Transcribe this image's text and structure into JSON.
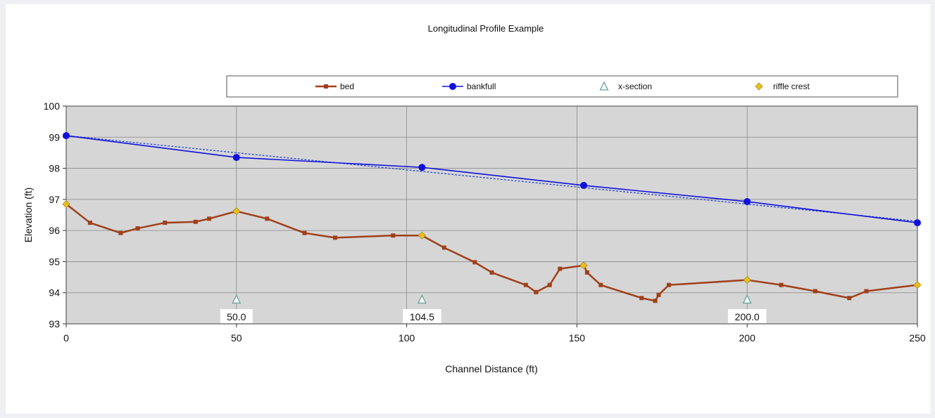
{
  "chart_data": {
    "type": "line",
    "title": "Longitudinal Profile Example",
    "xlabel": "Channel Distance (ft)",
    "ylabel": "Elevation (ft)",
    "xlim": [
      0,
      250
    ],
    "ylim": [
      93,
      100
    ],
    "xticks": [
      0,
      50,
      100,
      150,
      200,
      250
    ],
    "yticks": [
      93,
      94,
      95,
      96,
      97,
      98,
      99,
      100
    ],
    "grid": true,
    "legend_position": "top",
    "series": [
      {
        "name": "bed",
        "color": "#a0401a",
        "marker": "square",
        "points": [
          [
            0,
            96.85
          ],
          [
            7,
            96.25
          ],
          [
            16,
            95.92
          ],
          [
            21,
            96.07
          ],
          [
            29,
            96.25
          ],
          [
            38,
            96.28
          ],
          [
            42,
            96.38
          ],
          [
            50,
            96.62
          ],
          [
            59,
            96.38
          ],
          [
            70,
            95.92
          ],
          [
            79,
            95.77
          ],
          [
            96,
            95.84
          ],
          [
            104.5,
            95.84
          ],
          [
            111,
            95.45
          ],
          [
            120,
            94.98
          ],
          [
            125,
            94.65
          ],
          [
            135,
            94.25
          ],
          [
            138,
            94.02
          ],
          [
            142,
            94.25
          ],
          [
            145,
            94.77
          ],
          [
            152,
            94.88
          ],
          [
            153,
            94.65
          ],
          [
            157,
            94.25
          ],
          [
            169,
            93.83
          ],
          [
            173,
            93.74
          ],
          [
            174,
            93.93
          ],
          [
            177,
            94.25
          ],
          [
            200,
            94.41
          ],
          [
            210,
            94.25
          ],
          [
            220,
            94.05
          ],
          [
            230,
            93.83
          ],
          [
            235,
            94.05
          ],
          [
            250,
            94.25
          ]
        ]
      },
      {
        "name": "bankfull",
        "color": "#1010dd",
        "marker": "circle",
        "points": [
          [
            0,
            99.05
          ],
          [
            50,
            98.35
          ],
          [
            104.5,
            98.03
          ],
          [
            152,
            97.45
          ],
          [
            200,
            96.93
          ],
          [
            250,
            96.25
          ]
        ]
      },
      {
        "name": "x-section",
        "color": "#6aa3a0",
        "marker": "triangle",
        "points": [
          [
            50,
            93.78
          ],
          [
            104.5,
            93.78
          ],
          [
            200,
            93.78
          ]
        ]
      },
      {
        "name": "riffle crest",
        "color": "#e8c020",
        "marker": "diamond",
        "points": [
          [
            0,
            96.85
          ],
          [
            50,
            96.62
          ],
          [
            104.5,
            95.84
          ],
          [
            152,
            94.88
          ],
          [
            200,
            94.41
          ],
          [
            250,
            94.25
          ]
        ]
      }
    ],
    "trendline": {
      "series": "bankfull",
      "color": "#2a4ad8",
      "style": "dotted",
      "points": [
        [
          0,
          99.05
        ],
        [
          250,
          96.3
        ]
      ]
    },
    "annotations": [
      {
        "text": "50.0",
        "x": 50,
        "y": 93
      },
      {
        "text": "104.5",
        "x": 104.5,
        "y": 93
      },
      {
        "text": "200.0",
        "x": 200,
        "y": 93
      }
    ]
  }
}
